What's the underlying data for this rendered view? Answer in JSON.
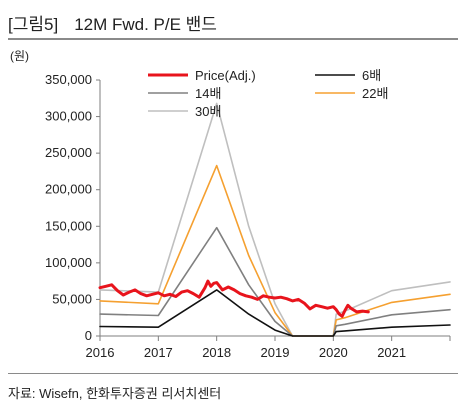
{
  "figure": {
    "number": "[그림5]",
    "title": "12M Fwd. P/E 밴드",
    "source": "자료: Wisefn, 한화투자증권 리서치센터"
  },
  "chart_data": {
    "type": "line",
    "title": "12M Fwd. P/E 밴드",
    "ylabel": "(원)",
    "xlabel": "",
    "ylim": [
      0,
      350000
    ],
    "xlim": [
      2016,
      2022
    ],
    "y_ticks": [
      0,
      50000,
      100000,
      150000,
      200000,
      250000,
      300000,
      350000
    ],
    "y_tick_labels": [
      "0",
      "50,000",
      "100,000",
      "150,000",
      "200,000",
      "250,000",
      "300,000",
      "350,000"
    ],
    "x_ticks": [
      2016,
      2017,
      2018,
      2019,
      2020,
      2021
    ],
    "x_tick_labels": [
      "2016",
      "2017",
      "2018",
      "2019",
      "2020",
      "2021"
    ],
    "grid": false,
    "legend_position": "top",
    "series": [
      {
        "name": "Price(Adj.)",
        "color": "#e8141c",
        "x": [
          2016.0,
          2016.1,
          2016.2,
          2016.3,
          2016.4,
          2016.5,
          2016.6,
          2016.7,
          2016.8,
          2016.9,
          2017.0,
          2017.1,
          2017.2,
          2017.3,
          2017.4,
          2017.5,
          2017.6,
          2017.7,
          2017.8,
          2017.85,
          2017.9,
          2017.95,
          2018.0,
          2018.1,
          2018.2,
          2018.3,
          2018.4,
          2018.5,
          2018.6,
          2018.7,
          2018.8,
          2018.9,
          2019.0,
          2019.1,
          2019.2,
          2019.3,
          2019.4,
          2019.5,
          2019.6,
          2019.7,
          2019.8,
          2019.9,
          2020.0,
          2020.05,
          2020.1,
          2020.15,
          2020.2,
          2020.25,
          2020.3,
          2020.4,
          2020.5,
          2020.6
        ],
        "values": [
          66000,
          68000,
          70000,
          62000,
          56000,
          60000,
          63000,
          58000,
          55000,
          57000,
          59000,
          55000,
          57000,
          54000,
          60000,
          62000,
          58000,
          53000,
          66000,
          75000,
          68000,
          72000,
          73000,
          63000,
          67000,
          63000,
          58000,
          55000,
          53000,
          50000,
          55000,
          53000,
          52000,
          53000,
          51000,
          48000,
          50000,
          45000,
          37000,
          42000,
          40000,
          38000,
          40000,
          36000,
          30000,
          27000,
          35000,
          42000,
          38000,
          33000,
          34000,
          33000
        ]
      },
      {
        "name": "6배",
        "color": "#111111",
        "x": [
          2016.0,
          2017.0,
          2018.0,
          2018.55,
          2019.0,
          2019.3,
          2020.0,
          2020.05,
          2020.2,
          2021.0,
          2022.0
        ],
        "values": [
          13000,
          12000,
          63000,
          30000,
          8000,
          0,
          0,
          6000,
          7000,
          12000,
          15000
        ]
      },
      {
        "name": "14배",
        "color": "#808080",
        "x": [
          2016.0,
          2017.0,
          2018.0,
          2018.55,
          2019.0,
          2019.3,
          2020.0,
          2020.05,
          2020.2,
          2021.0,
          2022.0
        ],
        "values": [
          30000,
          28000,
          148000,
          70000,
          20000,
          0,
          0,
          14000,
          16000,
          29000,
          36000
        ]
      },
      {
        "name": "22배",
        "color": "#f5a030",
        "x": [
          2016.0,
          2017.0,
          2018.0,
          2018.55,
          2019.0,
          2019.3,
          2020.0,
          2020.05,
          2020.2,
          2021.0,
          2022.0
        ],
        "values": [
          48000,
          44000,
          233000,
          110000,
          32000,
          0,
          0,
          22000,
          25000,
          46000,
          57000
        ]
      },
      {
        "name": "30배",
        "color": "#bfbfbf",
        "x": [
          2016.0,
          2017.0,
          2018.0,
          2018.55,
          2019.0,
          2019.3,
          2020.0,
          2020.05,
          2020.2,
          2021.0,
          2022.0
        ],
        "values": [
          63000,
          60000,
          318000,
          150000,
          44000,
          0,
          0,
          30000,
          34000,
          62000,
          74000
        ]
      }
    ]
  }
}
